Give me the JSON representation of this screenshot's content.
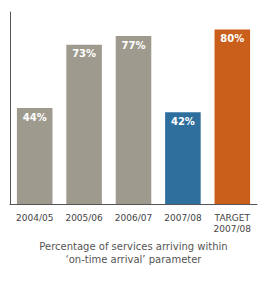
{
  "chart_data": {
    "type": "bar",
    "categories": [
      "2004/05",
      "2005/06",
      "2006/07",
      "2007/08",
      "TARGET\n2007/08"
    ],
    "values": [
      44,
      73,
      77,
      42,
      80
    ],
    "value_labels": [
      "44%",
      "73%",
      "77%",
      "42%",
      "80%"
    ],
    "colors": [
      "#9e9a8e",
      "#9e9a8e",
      "#9e9a8e",
      "#2e6f9e",
      "#c95f1a"
    ],
    "xlabel": "Percentage of services arriving within\n‘on-time arrival’ parameter",
    "ylim": [
      0,
      88
    ],
    "data_labels": true,
    "tick_labels": "x",
    "grid": false
  }
}
